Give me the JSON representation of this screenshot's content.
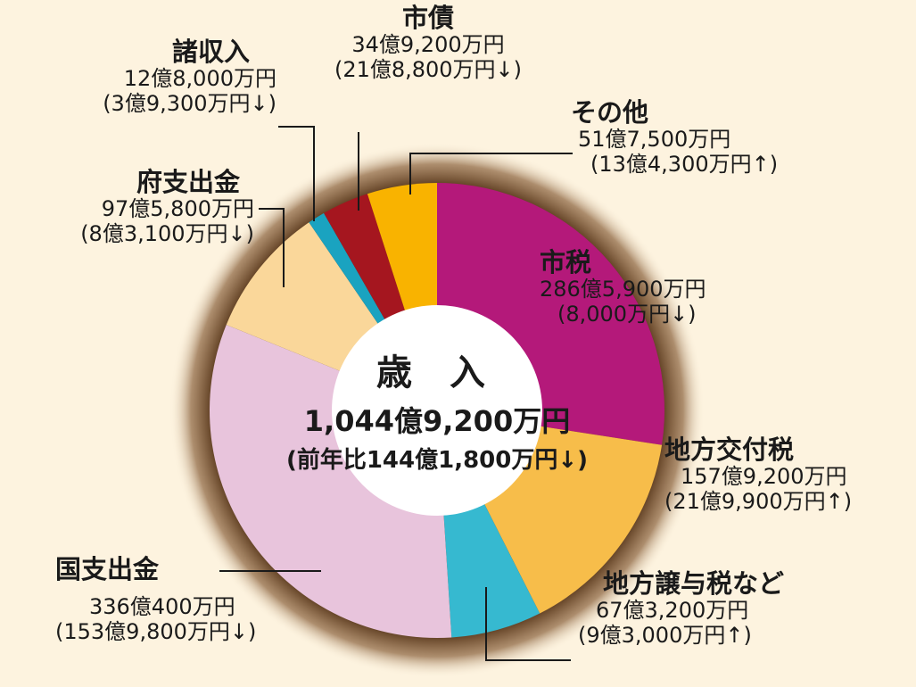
{
  "center": {
    "title": "歳 入",
    "total": "1,044億9,200万円",
    "comparison": "(前年比144億1,800万円↓)"
  },
  "chart_data": {
    "type": "pie",
    "unit": "万円",
    "slices": [
      {
        "name": "市税",
        "value": 2865900,
        "label": "286億5,900万円",
        "change": "(8,000万円↓)",
        "color": "#b4197a"
      },
      {
        "name": "地方交付税",
        "value": 1579200,
        "label": "157億9,200万円",
        "change": "(21億9,900万円↑)",
        "color": "#f7bd4a"
      },
      {
        "name": "地方譲与税など",
        "value": 673200,
        "label": "67億3,200万円",
        "change": "(9億3,000万円↑)",
        "color": "#36b9d0"
      },
      {
        "name": "国支出金",
        "value": 3360400,
        "label": "336億400万円",
        "change": "(153億9,800万円↓)",
        "color": "#e8c4dc"
      },
      {
        "name": "府支出金",
        "value": 975800,
        "label": "97億5,800万円",
        "change": "(8億3,100万円↓)",
        "color": "#fad79a"
      },
      {
        "name": "諸収入",
        "value": 128000,
        "label": "12億8,000万円",
        "change": "(3億9,300万円↓)",
        "color": "#1aa3c0"
      },
      {
        "name": "市債",
        "value": 349200,
        "label": "34億9,200万円",
        "change": "(21億8,800万円↓)",
        "color": "#a5161f"
      },
      {
        "name": "その他",
        "value": 517500,
        "label": "51億7,500万円",
        "change": "(13億4,300万円↑)",
        "color": "#f9b300"
      }
    ]
  }
}
